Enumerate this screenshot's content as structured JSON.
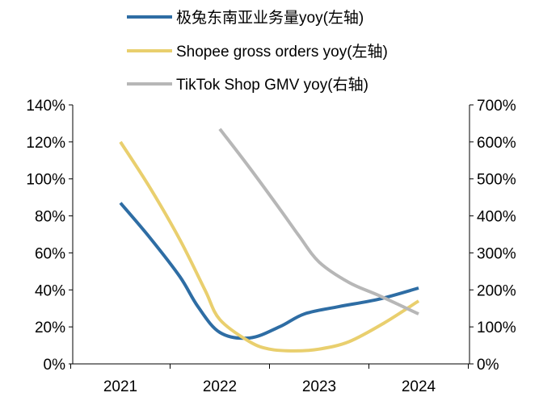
{
  "chart_data": {
    "type": "line",
    "title": "",
    "xlabel": "",
    "categories": [
      "2021",
      "2022",
      "2023",
      "2024"
    ],
    "y_left": {
      "range": [
        0,
        140
      ],
      "ticks": [
        0,
        20,
        40,
        60,
        80,
        100,
        120,
        140
      ],
      "tick_labels": [
        "0%",
        "20%",
        "40%",
        "60%",
        "80%",
        "100%",
        "120%",
        "140%"
      ],
      "unit": "%"
    },
    "y_right": {
      "range": [
        0,
        700
      ],
      "ticks": [
        0,
        100,
        200,
        300,
        400,
        500,
        600,
        700
      ],
      "tick_labels": [
        "0%",
        "100%",
        "200%",
        "300%",
        "400%",
        "500%",
        "600%",
        "700%"
      ],
      "unit": "%"
    },
    "legend_position": "top-center",
    "series": [
      {
        "name": "极兔东南亚业务量yoy(左轴)",
        "axis": "left",
        "color": "#2E6DA4",
        "x": [
          0.0,
          0.3,
          0.6,
          0.78,
          1.0,
          1.3,
          1.6,
          1.85,
          2.2,
          2.6,
          3.0
        ],
        "values": [
          87,
          68,
          47,
          31,
          17,
          14,
          20,
          27,
          31,
          35,
          41
        ]
      },
      {
        "name": "Shopee gross orders yoy(左轴)",
        "axis": "left",
        "color": "#E9CF6E",
        "x": [
          0.0,
          0.3,
          0.6,
          0.85,
          1.0,
          1.3,
          1.5,
          1.75,
          2.0,
          2.3,
          2.65,
          3.0
        ],
        "values": [
          120,
          95,
          67,
          40,
          24,
          12,
          8,
          7,
          8,
          12,
          22,
          34
        ]
      },
      {
        "name": "TikTok Shop GMV yoy(右轴)",
        "axis": "right",
        "color": "#B7B7B7",
        "x": [
          1.0,
          1.3,
          1.6,
          1.8,
          2.0,
          2.3,
          2.6,
          3.0
        ],
        "values": [
          635,
          530,
          420,
          345,
          275,
          220,
          185,
          135
        ]
      }
    ]
  }
}
